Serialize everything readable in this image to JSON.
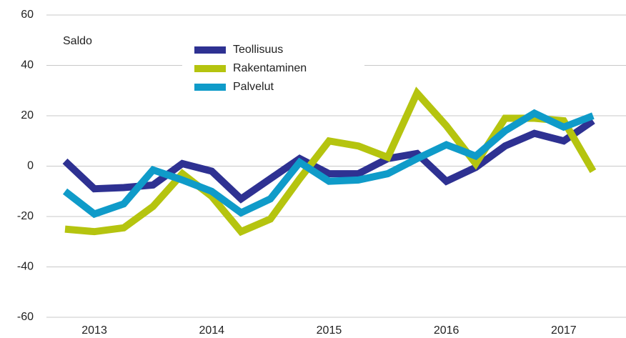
{
  "chart_data": {
    "type": "line",
    "annotation": "Saldo",
    "categories": [
      null,
      "2013",
      null,
      null,
      null,
      "2014",
      null,
      null,
      null,
      "2015",
      null,
      null,
      null,
      "2016",
      null,
      null,
      null,
      "2017",
      null
    ],
    "series": [
      {
        "name": "Teollisuus",
        "color": "#2e3192",
        "values": [
          2,
          -9,
          -8.5,
          -7.5,
          1,
          -2,
          -13,
          -5,
          3,
          -3,
          -3,
          3,
          5,
          -6,
          -0.5,
          8,
          13,
          10,
          18
        ]
      },
      {
        "name": "Rakentaminen",
        "color": "#b5c40f",
        "values": [
          -25,
          -26,
          -24.5,
          -16,
          -3,
          -12,
          -26,
          -21,
          -5,
          10,
          8,
          3.5,
          29,
          16,
          1,
          19,
          19,
          18,
          -2
        ]
      },
      {
        "name": "Palvelut",
        "color": "#0f9bc9",
        "values": [
          -10,
          -19,
          -15,
          -1.5,
          -5.5,
          -10,
          -18.5,
          -13,
          1.5,
          -6,
          -5.5,
          -3,
          3,
          8.5,
          4,
          14,
          21,
          15.5,
          20
        ]
      }
    ],
    "ylim": [
      -60,
      60
    ],
    "yticks": [
      -60,
      -40,
      -20,
      0,
      20,
      40,
      60
    ],
    "grid": true
  }
}
